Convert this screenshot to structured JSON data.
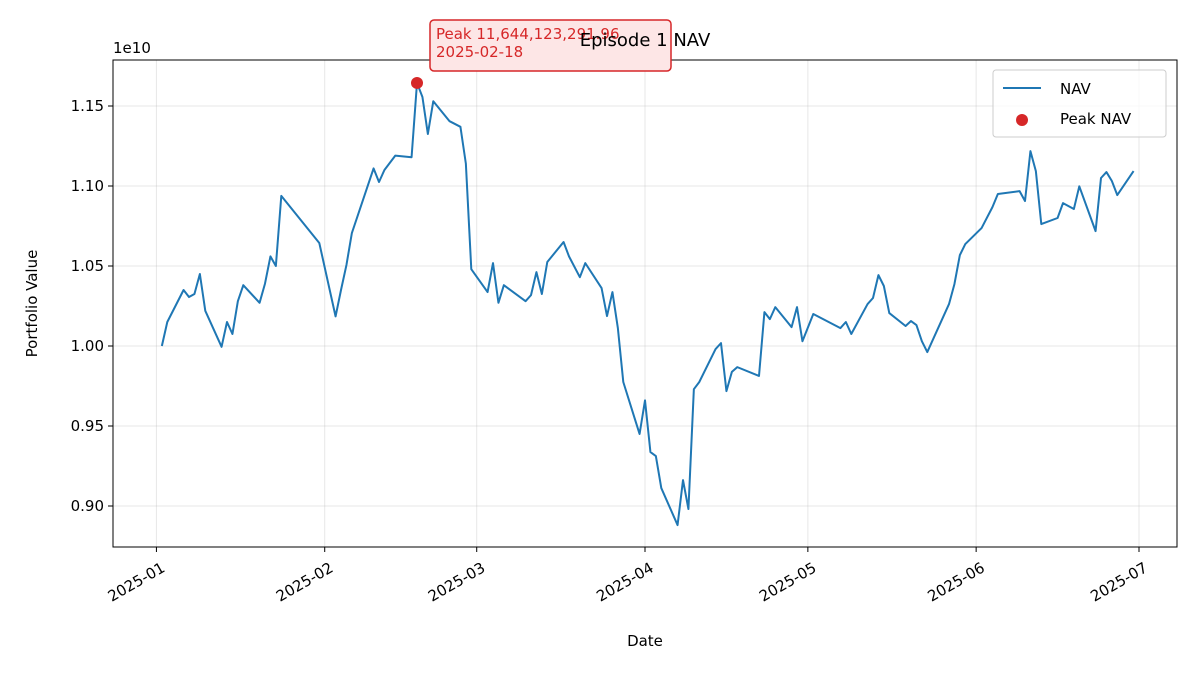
{
  "chart_data": {
    "type": "line",
    "title": "Episode 1 NAV",
    "xlabel": "Date",
    "ylabel": "Portfolio Value",
    "y_offset_label": "1e10",
    "xlim": [
      "2024-12-24",
      "2025-07-08"
    ],
    "xticks": [
      {
        "value": "2025-01-01",
        "label": "2025-01"
      },
      {
        "value": "2025-02-01",
        "label": "2025-02"
      },
      {
        "value": "2025-03-01",
        "label": "2025-03"
      },
      {
        "value": "2025-04-01",
        "label": "2025-04"
      },
      {
        "value": "2025-05-01",
        "label": "2025-05"
      },
      {
        "value": "2025-06-01",
        "label": "2025-06"
      },
      {
        "value": "2025-07-01",
        "label": "2025-07"
      }
    ],
    "ylim": [
      8743750000,
      11787500000
    ],
    "yticks": [
      {
        "value": 9000000000,
        "label": "0.90"
      },
      {
        "value": 9500000000,
        "label": "0.95"
      },
      {
        "value": 10000000000,
        "label": "1.00"
      },
      {
        "value": 10500000000,
        "label": "1.05"
      },
      {
        "value": 11000000000,
        "label": "1.10"
      },
      {
        "value": 11500000000,
        "label": "1.15"
      }
    ],
    "grid": true,
    "legend": "upper right",
    "series": [
      {
        "name": "NAV",
        "type": "line",
        "color": "#1f77b4",
        "x": [
          "2025-01-02",
          "2025-01-03",
          "2025-01-06",
          "2025-01-07",
          "2025-01-08",
          "2025-01-09",
          "2025-01-10",
          "2025-01-13",
          "2025-01-14",
          "2025-01-15",
          "2025-01-16",
          "2025-01-17",
          "2025-01-20",
          "2025-01-21",
          "2025-01-22",
          "2025-01-23",
          "2025-01-24",
          "2025-01-31",
          "2025-02-03",
          "2025-02-04",
          "2025-02-05",
          "2025-02-06",
          "2025-02-10",
          "2025-02-11",
          "2025-02-12",
          "2025-02-14",
          "2025-02-17",
          "2025-02-18",
          "2025-02-19",
          "2025-02-20",
          "2025-02-21",
          "2025-02-24",
          "2025-02-26",
          "2025-02-27",
          "2025-02-28",
          "2025-03-03",
          "2025-03-04",
          "2025-03-05",
          "2025-03-06",
          "2025-03-10",
          "2025-03-11",
          "2025-03-12",
          "2025-03-13",
          "2025-03-14",
          "2025-03-17",
          "2025-03-18",
          "2025-03-20",
          "2025-03-21",
          "2025-03-24",
          "2025-03-25",
          "2025-03-26",
          "2025-03-27",
          "2025-03-28",
          "2025-03-31",
          "2025-04-01",
          "2025-04-02",
          "2025-04-03",
          "2025-04-04",
          "2025-04-07",
          "2025-04-08",
          "2025-04-09",
          "2025-04-10",
          "2025-04-11",
          "2025-04-14",
          "2025-04-15",
          "2025-04-16",
          "2025-04-17",
          "2025-04-18",
          "2025-04-22",
          "2025-04-23",
          "2025-04-24",
          "2025-04-25",
          "2025-04-28",
          "2025-04-29",
          "2025-04-30",
          "2025-05-02",
          "2025-05-07",
          "2025-05-08",
          "2025-05-09",
          "2025-05-12",
          "2025-05-13",
          "2025-05-14",
          "2025-05-15",
          "2025-05-16",
          "2025-05-19",
          "2025-05-20",
          "2025-05-21",
          "2025-05-22",
          "2025-05-23",
          "2025-05-26",
          "2025-05-27",
          "2025-05-28",
          "2025-05-29",
          "2025-05-30",
          "2025-06-02",
          "2025-06-04",
          "2025-06-05",
          "2025-06-09",
          "2025-06-10",
          "2025-06-11",
          "2025-06-12",
          "2025-06-13",
          "2025-06-16",
          "2025-06-17",
          "2025-06-19",
          "2025-06-20",
          "2025-06-23",
          "2025-06-24",
          "2025-06-25",
          "2025-06-26",
          "2025-06-27",
          "2025-06-30"
        ],
        "values": [
          10000000000,
          10150000000,
          10350000000,
          10306000000,
          10325000000,
          10450000000,
          10220000000,
          9995000000,
          10150000000,
          10075000000,
          10280000000,
          10380000000,
          10270000000,
          10390000000,
          10560000000,
          10500000000,
          10938000000,
          10644000000,
          10185000000,
          10350000000,
          10506000000,
          10706000000,
          11110000000,
          11025000000,
          11100000000,
          11190000000,
          11180000000,
          11644123291.96,
          11556000000,
          11325000000,
          11530000000,
          11405000000,
          11370000000,
          11140000000,
          10480000000,
          10337000000,
          10518000000,
          10270000000,
          10380000000,
          10280000000,
          10318000000,
          10462000000,
          10325000000,
          10525000000,
          10650000000,
          10560000000,
          10430000000,
          10518000000,
          10362000000,
          10187000000,
          10337000000,
          10112000000,
          9775000000,
          9450000000,
          9660000000,
          9337000000,
          9312000000,
          9112000000,
          8881000000,
          9162000000,
          8981000000,
          9730000000,
          9775000000,
          9981000000,
          10018000000,
          9718000000,
          9838000000,
          9868000000,
          9813000000,
          10212000000,
          10168000000,
          10243000000,
          10118000000,
          10243000000,
          10030000000,
          10200000000,
          10112000000,
          10150000000,
          10075000000,
          10262000000,
          10300000000,
          10443000000,
          10375000000,
          10206000000,
          10125000000,
          10156000000,
          10131000000,
          10030000000,
          9962000000,
          10187000000,
          10262000000,
          10387000000,
          10568000000,
          10637000000,
          10737000000,
          10868000000,
          10950000000,
          10968000000,
          10906000000,
          11218000000,
          11093000000,
          10762000000,
          10800000000,
          10893000000,
          10856000000,
          10998000000,
          10718000000,
          11050000000,
          11087000000,
          11031000000,
          10943000000,
          11093000000
        ]
      },
      {
        "name": "Peak NAV",
        "type": "scatter",
        "color": "#d62728",
        "x": [
          "2025-02-18"
        ],
        "values": [
          11644123291.96
        ]
      }
    ],
    "annotation": {
      "lines": [
        "Peak 11,644,123,291.96",
        "2025-02-18"
      ],
      "color": "#d62728"
    }
  }
}
